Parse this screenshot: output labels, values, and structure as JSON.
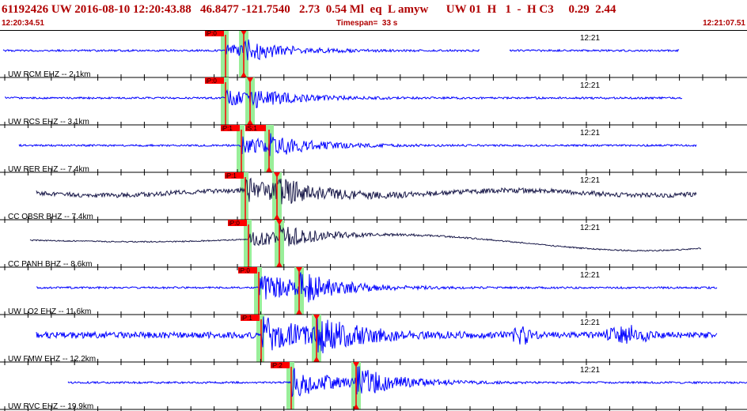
{
  "header": {
    "title": "61192426 UW 2016-08-10 12:20:43.88   46.8477 -121.7540   2.73  0.54 Ml  eq  L amyw      UW 01  H   1  -  H C3     0.29  2.44",
    "start_time": "12:20:34.51",
    "timespan": "Timespan=  33 s",
    "end_time": "12:21:07.51"
  },
  "colors": {
    "header_text": "#b00000",
    "trace_hz": "#0000ff",
    "trace_bb": "#1a1a4a",
    "pick_marker": "#ff0000",
    "pick_window": "#99ee99",
    "grid": "#000000"
  },
  "tick_minute_label": "12:21",
  "traces": [
    {
      "label": "UW RCM EHZ -- 2.1km",
      "kind": "short",
      "picks": [
        "iP:0",
        "S"
      ],
      "amp": 10
    },
    {
      "label": "UW RCS EHZ -- 3.1km",
      "kind": "short",
      "picks": [
        "iP:0",
        "S"
      ],
      "amp": 10
    },
    {
      "label": "UW RER EHZ -- 7.4km",
      "kind": "short",
      "picks": [
        "iP:1",
        "iS:1"
      ],
      "amp": 12
    },
    {
      "label": "CC OBSR BHZ -- 7.4km",
      "kind": "broadband",
      "picks": [
        "iP:1",
        "S"
      ],
      "amp": 14
    },
    {
      "label": "CC PANH BHZ -- 8.6km",
      "kind": "longperiod",
      "picks": [
        "iP:0",
        "S"
      ],
      "amp": 12
    },
    {
      "label": "UW LO2 EHZ -- 11.6km",
      "kind": "short",
      "picks": [
        "iP:0",
        "S"
      ],
      "amp": 18
    },
    {
      "label": "UW FMW EHZ -- 12.2km",
      "kind": "noisy",
      "picks": [
        "iP:1",
        "S"
      ],
      "amp": 22
    },
    {
      "label": "UW RVC EHZ -- 19.9km",
      "kind": "short",
      "picks": [
        "iP:2",
        "S"
      ],
      "amp": 20
    }
  ]
}
